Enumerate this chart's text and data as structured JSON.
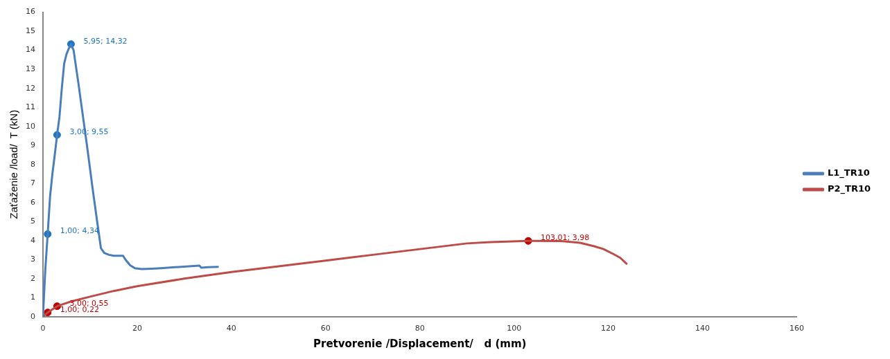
{
  "chart_data": {
    "type": "line",
    "xlabel": "Pretvorenie /Displacement/   d (mm)",
    "ylabel": "Zaťaženie /load/  T (kN)",
    "xlim": [
      0,
      160
    ],
    "xticks": [
      0,
      20,
      40,
      60,
      80,
      100,
      120,
      140,
      160
    ],
    "ylim": [
      0,
      16
    ],
    "yticks": [
      0,
      1,
      2,
      3,
      4,
      5,
      6,
      7,
      8,
      9,
      10,
      11,
      12,
      13,
      14,
      15,
      16
    ],
    "grid": false,
    "legend": "right",
    "marker": "none",
    "line_style": "solid",
    "series": [
      {
        "name": "L1_TR10",
        "color": "#4a7ebb",
        "x": [
          0,
          0.5,
          1,
          1.5,
          2,
          2.5,
          3,
          3.5,
          4,
          4.5,
          5,
          5.5,
          5.95,
          6.5,
          7.5,
          8.5,
          9.5,
          10.5,
          11.5,
          12.3,
          13,
          14,
          15,
          17,
          17.5,
          18.5,
          19.5,
          21,
          23,
          25,
          28,
          31,
          33.2,
          33.6,
          35,
          37.3
        ],
        "values": [
          0,
          2.5,
          4.34,
          6.3,
          7.5,
          8.5,
          9.55,
          10.5,
          12,
          13.3,
          13.8,
          14.1,
          14.32,
          14,
          12.3,
          10.5,
          8.7,
          6.8,
          5,
          3.6,
          3.35,
          3.25,
          3.2,
          3.2,
          3,
          2.7,
          2.55,
          2.5,
          2.52,
          2.55,
          2.6,
          2.65,
          2.68,
          2.57,
          2.6,
          2.62
        ]
      },
      {
        "name": "P2_TR10",
        "color": "#be4b48",
        "x": [
          0,
          1,
          3,
          6,
          10,
          15,
          20,
          30,
          40,
          50,
          60,
          70,
          80,
          90,
          95,
          103.01,
          110,
          114,
          117,
          119,
          121,
          122.5,
          124
        ],
        "values": [
          0,
          0.22,
          0.55,
          0.8,
          1.05,
          1.35,
          1.6,
          2,
          2.35,
          2.65,
          2.95,
          3.25,
          3.55,
          3.85,
          3.92,
          3.98,
          3.97,
          3.88,
          3.7,
          3.55,
          3.3,
          3.1,
          2.75
        ]
      },
      {
        "type": "scatter",
        "marker": "circle",
        "color": "#1a75c4",
        "x": [
          1,
          3,
          5.95
        ],
        "values": [
          4.34,
          9.55,
          14.32
        ],
        "value_labels": [
          "1,00; 4,34",
          "3,00; 9,55",
          "5,95; 14,32"
        ]
      },
      {
        "type": "scatter",
        "marker": "circle",
        "color": "#c00000",
        "x": [
          1,
          3,
          103.01
        ],
        "values": [
          0.22,
          0.55,
          3.98
        ],
        "value_labels": [
          "1,00; 0,22",
          "3,00; 0,55",
          "103,01; 3,98"
        ]
      }
    ]
  }
}
